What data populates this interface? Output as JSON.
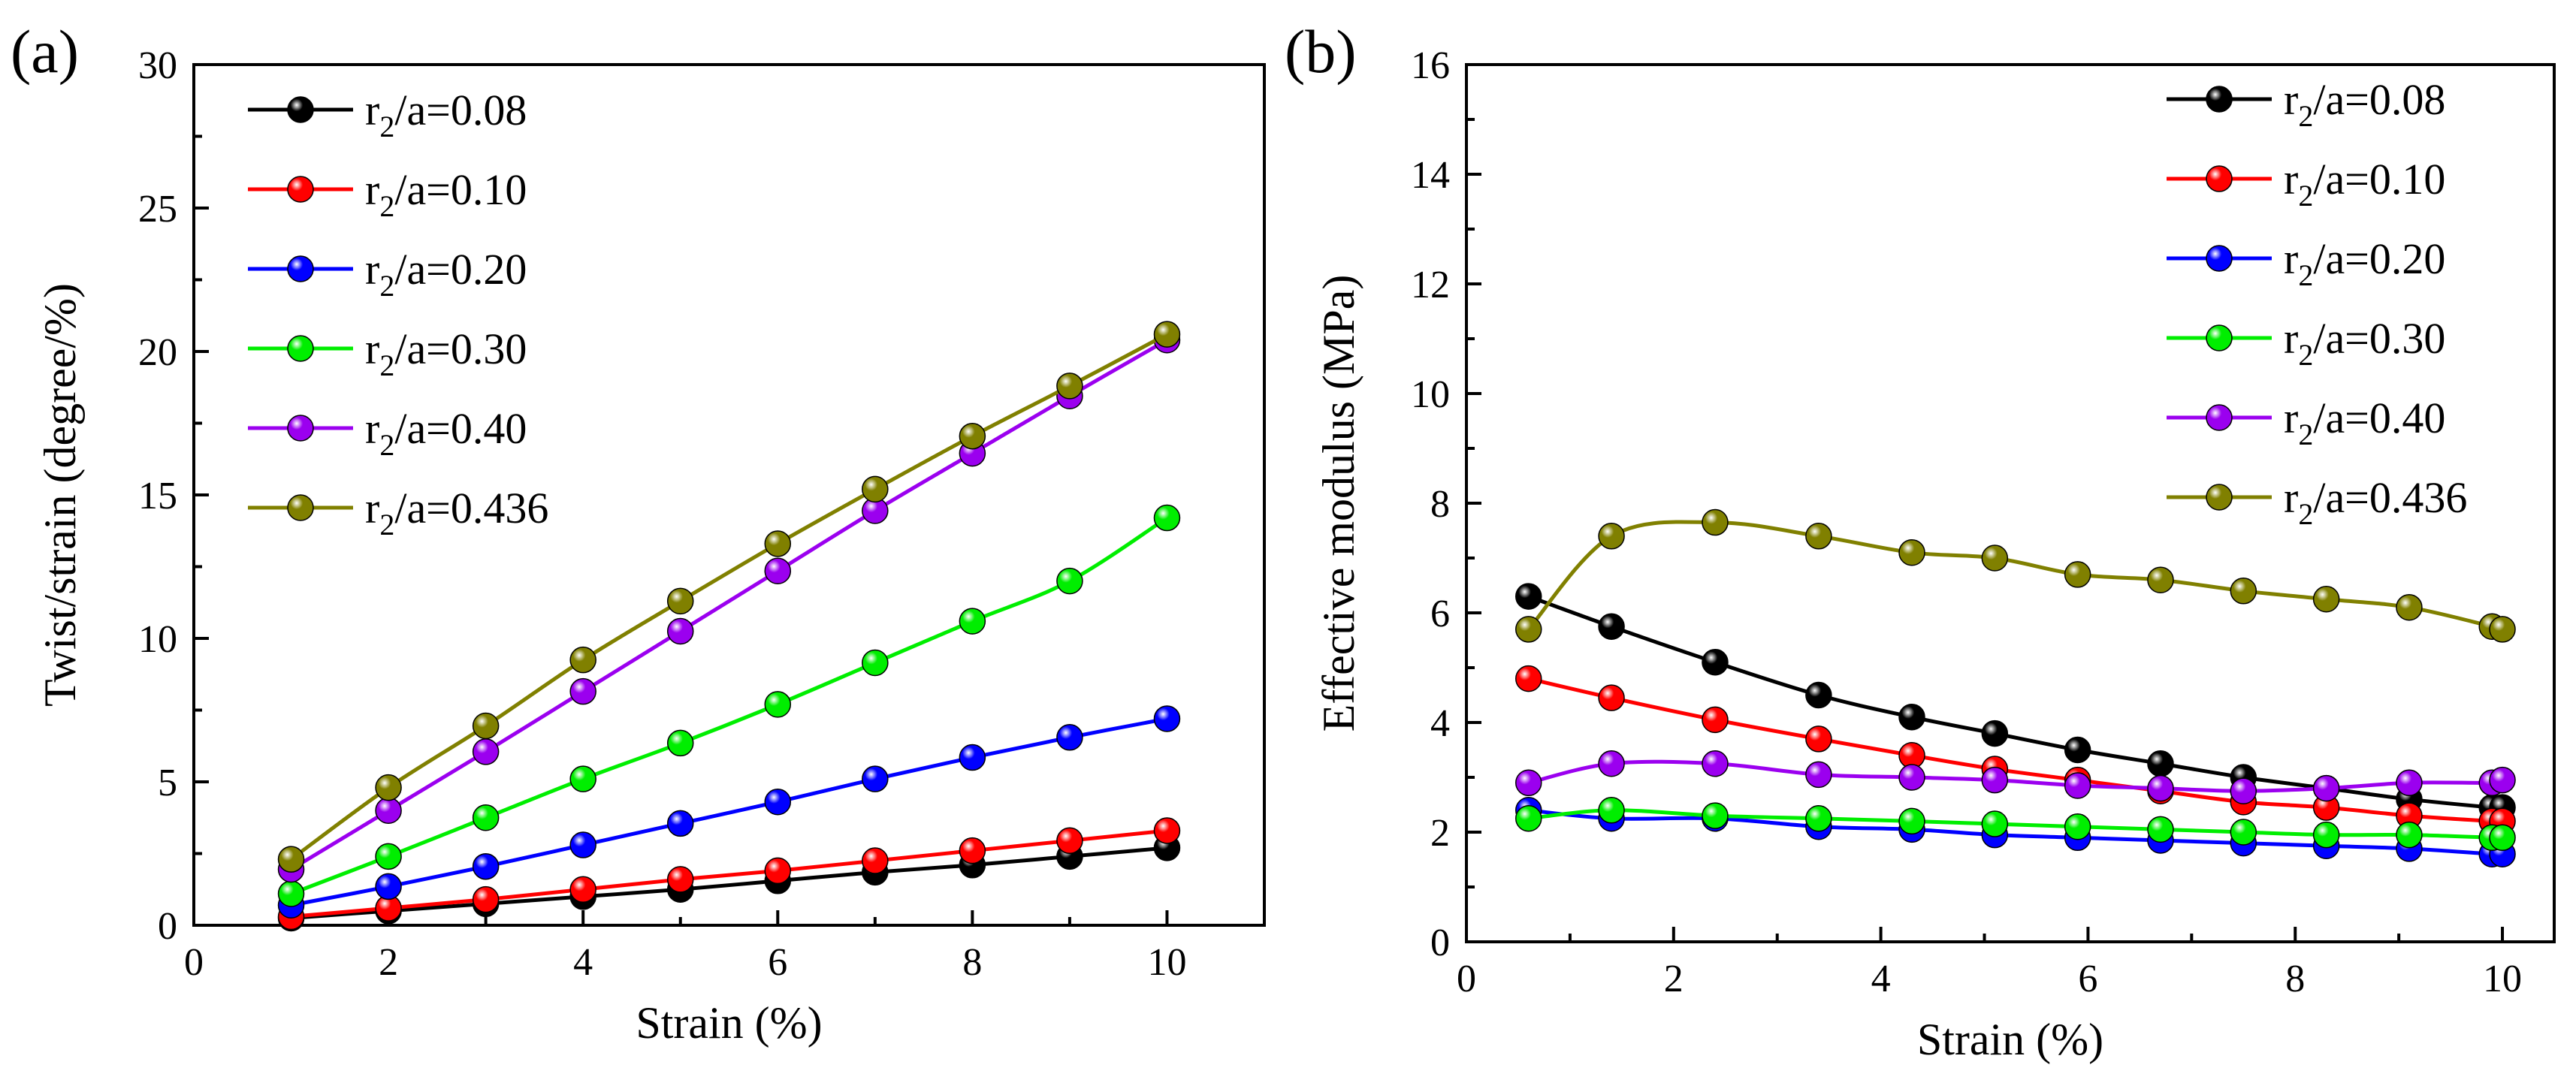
{
  "chart_data": [
    {
      "type": "line",
      "panel_label": "(a)",
      "xlabel": "Strain (%)",
      "ylabel": "Twist/strain (degree/%)",
      "xlim": [
        0,
        11
      ],
      "ylim": [
        0,
        30
      ],
      "xticks": [
        0,
        2,
        4,
        6,
        8,
        10
      ],
      "yticks": [
        0,
        5,
        10,
        15,
        20,
        25,
        30
      ],
      "grid": false,
      "legend_position": "top-left",
      "x": [
        1,
        2,
        3,
        4,
        5,
        6,
        7,
        8,
        9,
        10
      ],
      "series": [
        {
          "name": "r2/a=0.08",
          "label_main": "r",
          "label_sub": "2",
          "label_rest": "/a=0.08",
          "color": "#000000",
          "values": [
            0.25,
            0.5,
            0.75,
            1.0,
            1.25,
            1.55,
            1.85,
            2.1,
            2.4,
            2.7
          ]
        },
        {
          "name": "r2/a=0.10",
          "label_main": "r",
          "label_sub": "2",
          "label_rest": "/a=0.10",
          "color": "#ff0000",
          "values": [
            0.3,
            0.6,
            0.9,
            1.25,
            1.6,
            1.9,
            2.25,
            2.6,
            2.95,
            3.3
          ]
        },
        {
          "name": "r2/a=0.20",
          "label_main": "r",
          "label_sub": "2",
          "label_rest": "/a=0.20",
          "color": "#0000ff",
          "values": [
            0.7,
            1.35,
            2.05,
            2.8,
            3.55,
            4.3,
            5.1,
            5.85,
            6.55,
            7.2
          ]
        },
        {
          "name": "r2/a=0.30",
          "label_main": "r",
          "label_sub": "2",
          "label_rest": "/a=0.30",
          "color": "#00ee00",
          "values": [
            1.1,
            2.4,
            3.75,
            5.1,
            6.35,
            7.7,
            9.15,
            10.6,
            12.0,
            14.2
          ]
        },
        {
          "name": "r2/a=0.40",
          "label_main": "r",
          "label_sub": "2",
          "label_rest": "/a=0.40",
          "color": "#9b00ef",
          "values": [
            1.95,
            4.0,
            6.05,
            8.15,
            10.25,
            12.35,
            14.45,
            16.45,
            18.45,
            20.4
          ]
        },
        {
          "name": "r2/a=0.436",
          "label_main": "r",
          "label_sub": "2",
          "label_rest": "/a=0.436",
          "color": "#808000",
          "values": [
            2.3,
            4.8,
            6.95,
            9.25,
            11.3,
            13.3,
            15.2,
            17.05,
            18.8,
            20.6
          ]
        }
      ]
    },
    {
      "type": "line",
      "panel_label": "(b)",
      "xlabel": "Strain (%)",
      "ylabel": "Effective modulus (MPa)",
      "xlim": [
        0,
        10.5
      ],
      "ylim": [
        0,
        16
      ],
      "xticks": [
        0,
        2,
        4,
        6,
        8,
        10
      ],
      "yticks": [
        0,
        2,
        4,
        6,
        8,
        10,
        12,
        14,
        16
      ],
      "grid": false,
      "legend_position": "top-right",
      "x": [
        0.6,
        1.4,
        2.4,
        3.4,
        4.3,
        5.1,
        5.9,
        6.7,
        7.5,
        8.3,
        9.1,
        9.9,
        10.0
      ],
      "series": [
        {
          "name": "r2/a=0.08",
          "label_main": "r",
          "label_sub": "2",
          "label_rest": "/a=0.08",
          "color": "#000000",
          "values": [
            6.3,
            5.75,
            5.1,
            4.5,
            4.1,
            3.8,
            3.5,
            3.25,
            3.0,
            2.8,
            2.6,
            2.45,
            2.45
          ]
        },
        {
          "name": "r2/a=0.10",
          "label_main": "r",
          "label_sub": "2",
          "label_rest": "/a=0.10",
          "color": "#ff0000",
          "values": [
            4.8,
            4.45,
            4.05,
            3.7,
            3.4,
            3.15,
            2.95,
            2.75,
            2.55,
            2.45,
            2.3,
            2.2,
            2.2
          ]
        },
        {
          "name": "r2/a=0.20",
          "label_main": "r",
          "label_sub": "2",
          "label_rest": "/a=0.20",
          "color": "#0000ff",
          "values": [
            2.4,
            2.25,
            2.25,
            2.1,
            2.05,
            1.95,
            1.9,
            1.85,
            1.8,
            1.75,
            1.7,
            1.6,
            1.6
          ]
        },
        {
          "name": "r2/a=0.30",
          "label_main": "r",
          "label_sub": "2",
          "label_rest": "/a=0.30",
          "color": "#00ee00",
          "values": [
            2.25,
            2.4,
            2.3,
            2.25,
            2.2,
            2.15,
            2.1,
            2.05,
            2.0,
            1.95,
            1.95,
            1.9,
            1.9
          ]
        },
        {
          "name": "r2/a=0.40",
          "label_main": "r",
          "label_sub": "2",
          "label_rest": "/a=0.40",
          "color": "#9b00ef",
          "values": [
            2.9,
            3.25,
            3.25,
            3.05,
            3.0,
            2.95,
            2.85,
            2.8,
            2.75,
            2.8,
            2.9,
            2.9,
            2.95
          ]
        },
        {
          "name": "r2/a=0.436",
          "label_main": "r",
          "label_sub": "2",
          "label_rest": "/a=0.436",
          "color": "#808000",
          "values": [
            5.7,
            7.4,
            7.65,
            7.4,
            7.1,
            7.0,
            6.7,
            6.6,
            6.4,
            6.25,
            6.1,
            5.75,
            5.7
          ]
        }
      ]
    }
  ]
}
